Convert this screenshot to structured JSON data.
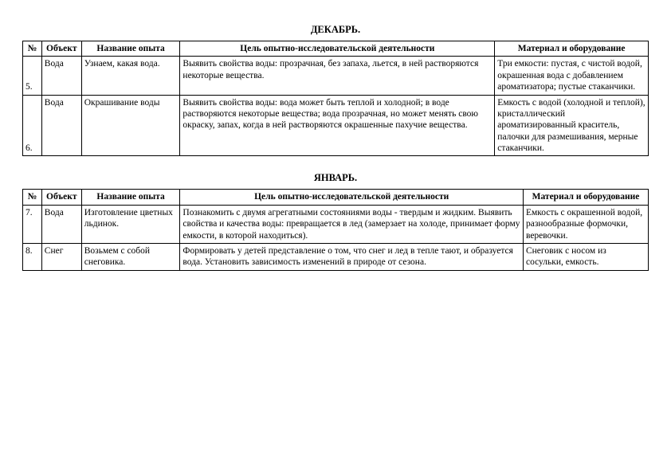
{
  "months": {
    "december": {
      "title": "ДЕКАБРЬ.",
      "headers": {
        "num": "№",
        "object": "Объект",
        "name": "Название опыта",
        "goal": "Цель опытно-исследовательской  деятельности",
        "material": "Материал и оборудование"
      },
      "rows": [
        {
          "num": "5.",
          "object": "Вода",
          "name": "Узнаем, какая вода.",
          "goal": "Выявить свойства воды: прозрачная, без запаха, льется, в ней растворяются некоторые вещества.",
          "material": "Три емкости: пустая, с чистой водой, окрашенная вода с добавлением ароматизатора; пустые стаканчики."
        },
        {
          "num": "6.",
          "object": "Вода",
          "name": "Окрашивание воды",
          "goal": "Выявить свойства воды: вода может быть теплой и холодной; в воде растворяются некоторые вещества; вода прозрачная, но может менять свою окраску, запах, когда в ней растворяются окрашенные пахучие вещества.",
          "material": "Емкость с водой (холодной и теплой), кристаллический ароматизированный краситель, палочки для размешивания, мерные стаканчики."
        }
      ]
    },
    "january": {
      "title": "ЯНВАРЬ.",
      "headers": {
        "num": "№",
        "object": "Объект",
        "name": "Название опыта",
        "goal": "Цель опытно-исследовательской  деятельности",
        "material": "Материал и оборудование"
      },
      "rows": [
        {
          "num": "7.",
          "object": "Вода",
          "name": "Изготовление цветных льдинок.",
          "goal": "Познакомить с двумя агрегатными состояниями воды - твердым и жидким. Выявить свойства и качества воды: превращается в лед (замерзает на холоде, принимает форму емкости, в которой находиться).",
          "material": "Емкость с окрашенной водой, разнообразные формочки, веревочки."
        },
        {
          "num": "8.",
          "object": "Снег",
          "name": "Возьмем с собой снеговика.",
          "goal": "Формировать у детей представление о том, что снег и лед в тепле тают, и образуется вода. Установить зависимость изменений в природе от сезона.",
          "material": "Снеговик с носом из сосульки, емкость."
        }
      ]
    }
  }
}
